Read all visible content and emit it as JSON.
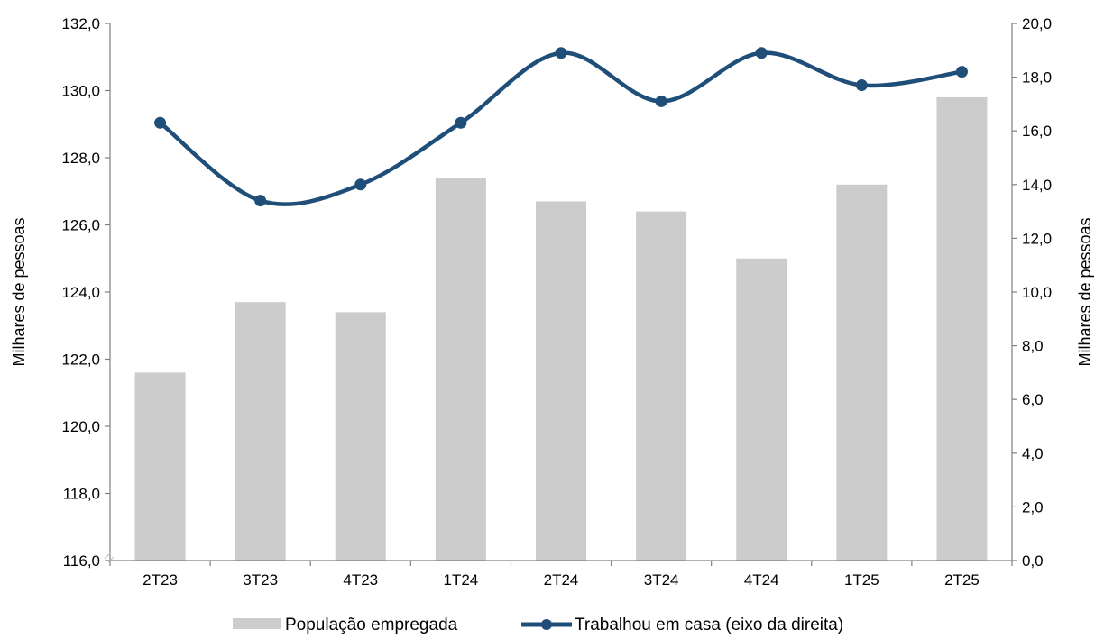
{
  "chart_data": {
    "type": "bar",
    "categories": [
      "2T23",
      "3T23",
      "4T23",
      "1T24",
      "2T24",
      "3T24",
      "4T24",
      "1T25",
      "2T25"
    ],
    "series": [
      {
        "name": "População empregada",
        "type": "bar",
        "axis": "left",
        "color": "#cccccc",
        "values": [
          121.6,
          123.7,
          123.4,
          127.4,
          126.7,
          126.4,
          125.0,
          127.2,
          129.8
        ]
      },
      {
        "name": "Trabalhou em casa (eixo da direita)",
        "type": "line",
        "axis": "right",
        "color": "#1f4e79",
        "smooth": true,
        "values": [
          16.3,
          13.4,
          14.0,
          16.3,
          18.9,
          17.1,
          18.9,
          17.7,
          18.2
        ]
      }
    ],
    "y_left": {
      "label": "Milhares de pessoas",
      "ylim": [
        116.0,
        132.0
      ],
      "ticks": [
        "116,0",
        "118,0",
        "120,0",
        "122,0",
        "124,0",
        "126,0",
        "128,0",
        "130,0",
        "132,0"
      ]
    },
    "y_right": {
      "label": "Milhares de pessoas",
      "ylim": [
        0.0,
        20.0
      ],
      "ticks": [
        "0,0",
        "2,0",
        "4,0",
        "6,0",
        "8,0",
        "10,0",
        "12,0",
        "14,0",
        "16,0",
        "18,0",
        "20,0"
      ]
    },
    "grid": false,
    "legend_position": "bottom"
  }
}
